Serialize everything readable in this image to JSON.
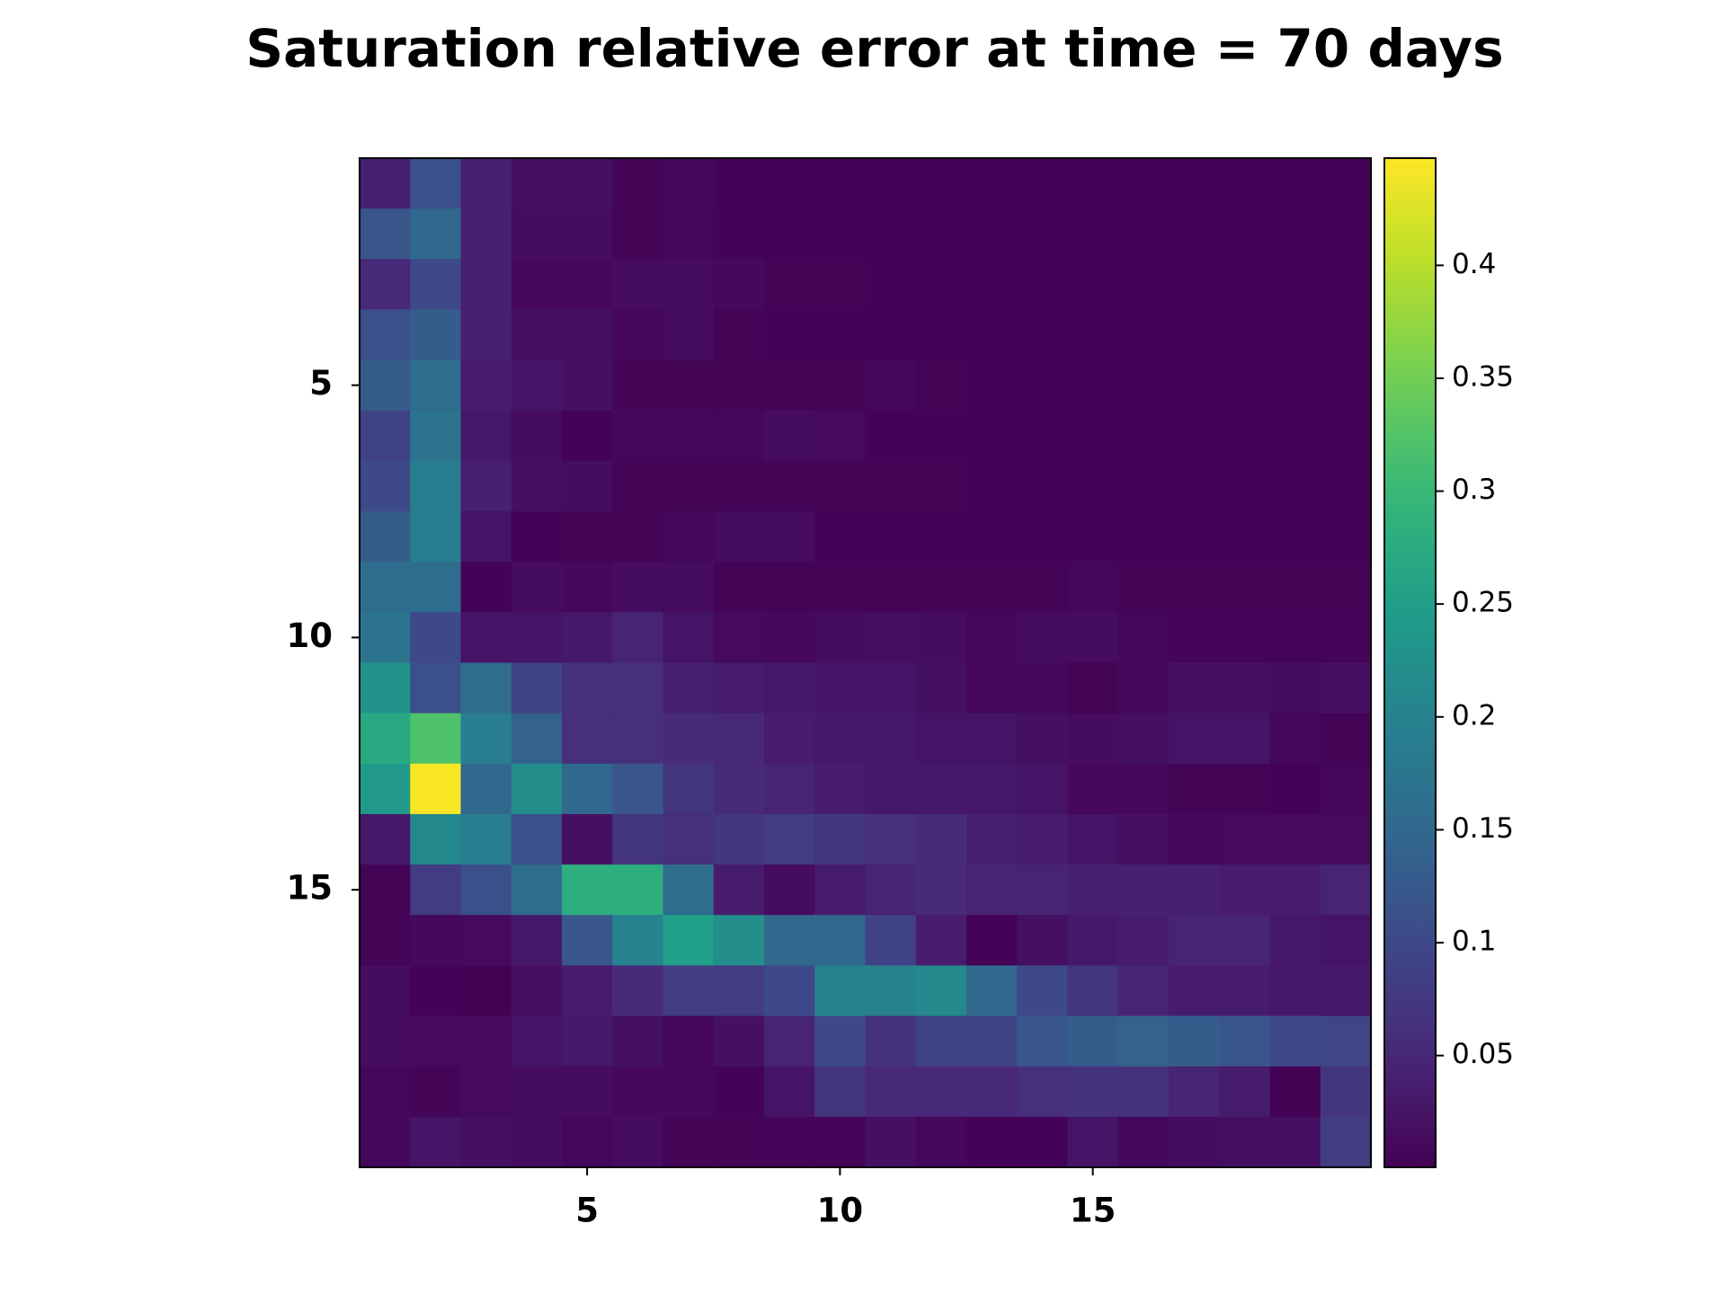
{
  "chart_data": {
    "type": "heatmap",
    "title": "Saturation relative error at time = 70 days",
    "colormap": "viridis",
    "x": [
      1,
      2,
      3,
      4,
      5,
      6,
      7,
      8,
      9,
      10,
      11,
      12,
      13,
      14,
      15,
      16,
      17,
      18,
      19,
      20
    ],
    "y": [
      1,
      2,
      3,
      4,
      5,
      6,
      7,
      8,
      9,
      10,
      11,
      12,
      13,
      14,
      15,
      16,
      17,
      18,
      19,
      20
    ],
    "xlim": [
      0.5,
      20.5
    ],
    "ylim": [
      20.5,
      0.5
    ],
    "xticks": [
      5,
      10,
      15
    ],
    "yticks": [
      5,
      10,
      15
    ],
    "clim": [
      0.0005,
      0.4475
    ],
    "cticks": [
      0.05,
      0.1,
      0.15,
      0.2,
      0.25,
      0.3,
      0.35,
      0.4
    ],
    "z": [
      [
        0.04,
        0.11,
        0.04,
        0.02,
        0.02,
        0.005,
        0.01,
        0.003,
        0.003,
        0.003,
        0.003,
        0.003,
        0.003,
        0.003,
        0.003,
        0.003,
        0.003,
        0.003,
        0.003,
        0.003
      ],
      [
        0.12,
        0.15,
        0.04,
        0.015,
        0.015,
        0.005,
        0.008,
        0.003,
        0.003,
        0.003,
        0.003,
        0.003,
        0.003,
        0.003,
        0.003,
        0.003,
        0.003,
        0.003,
        0.003,
        0.003
      ],
      [
        0.05,
        0.1,
        0.04,
        0.01,
        0.01,
        0.015,
        0.015,
        0.01,
        0.005,
        0.005,
        0.003,
        0.003,
        0.003,
        0.003,
        0.003,
        0.003,
        0.003,
        0.003,
        0.003,
        0.003
      ],
      [
        0.11,
        0.13,
        0.04,
        0.02,
        0.02,
        0.01,
        0.015,
        0.005,
        0.003,
        0.003,
        0.003,
        0.003,
        0.003,
        0.003,
        0.003,
        0.003,
        0.003,
        0.003,
        0.003,
        0.003
      ],
      [
        0.13,
        0.16,
        0.035,
        0.025,
        0.02,
        0.005,
        0.005,
        0.005,
        0.005,
        0.005,
        0.008,
        0.005,
        0.003,
        0.003,
        0.003,
        0.003,
        0.003,
        0.003,
        0.003,
        0.003
      ],
      [
        0.09,
        0.17,
        0.03,
        0.015,
        0.003,
        0.008,
        0.008,
        0.008,
        0.015,
        0.012,
        0.003,
        0.003,
        0.003,
        0.003,
        0.003,
        0.003,
        0.003,
        0.003,
        0.003,
        0.003
      ],
      [
        0.1,
        0.19,
        0.04,
        0.02,
        0.015,
        0.005,
        0.005,
        0.005,
        0.005,
        0.005,
        0.005,
        0.005,
        0.003,
        0.003,
        0.003,
        0.003,
        0.003,
        0.003,
        0.003,
        0.003
      ],
      [
        0.13,
        0.19,
        0.025,
        0.003,
        0.005,
        0.005,
        0.01,
        0.015,
        0.015,
        0.003,
        0.003,
        0.003,
        0.003,
        0.003,
        0.003,
        0.003,
        0.003,
        0.003,
        0.003,
        0.003
      ],
      [
        0.16,
        0.16,
        0.003,
        0.015,
        0.01,
        0.015,
        0.015,
        0.005,
        0.005,
        0.005,
        0.005,
        0.005,
        0.005,
        0.005,
        0.008,
        0.005,
        0.005,
        0.005,
        0.005,
        0.005
      ],
      [
        0.17,
        0.1,
        0.025,
        0.025,
        0.03,
        0.045,
        0.025,
        0.012,
        0.01,
        0.015,
        0.018,
        0.015,
        0.008,
        0.015,
        0.015,
        0.008,
        0.006,
        0.006,
        0.006,
        0.006
      ],
      [
        0.23,
        0.11,
        0.16,
        0.09,
        0.06,
        0.06,
        0.04,
        0.035,
        0.03,
        0.025,
        0.025,
        0.02,
        0.01,
        0.01,
        0.005,
        0.01,
        0.02,
        0.02,
        0.015,
        0.02
      ],
      [
        0.27,
        0.32,
        0.19,
        0.14,
        0.06,
        0.06,
        0.055,
        0.05,
        0.035,
        0.03,
        0.03,
        0.025,
        0.025,
        0.02,
        0.015,
        0.02,
        0.025,
        0.025,
        0.01,
        0.005
      ],
      [
        0.24,
        0.445,
        0.15,
        0.22,
        0.15,
        0.12,
        0.07,
        0.055,
        0.045,
        0.035,
        0.03,
        0.03,
        0.03,
        0.025,
        0.01,
        0.01,
        0.005,
        0.005,
        0.003,
        0.008
      ],
      [
        0.03,
        0.21,
        0.19,
        0.11,
        0.02,
        0.07,
        0.06,
        0.07,
        0.08,
        0.07,
        0.06,
        0.055,
        0.04,
        0.035,
        0.025,
        0.02,
        0.01,
        0.012,
        0.012,
        0.012
      ],
      [
        0.005,
        0.08,
        0.11,
        0.16,
        0.28,
        0.28,
        0.16,
        0.035,
        0.015,
        0.035,
        0.045,
        0.055,
        0.045,
        0.045,
        0.04,
        0.04,
        0.04,
        0.035,
        0.035,
        0.045
      ],
      [
        0.005,
        0.01,
        0.012,
        0.03,
        0.12,
        0.2,
        0.25,
        0.22,
        0.15,
        0.15,
        0.09,
        0.035,
        0.003,
        0.02,
        0.03,
        0.035,
        0.045,
        0.045,
        0.03,
        0.025
      ],
      [
        0.015,
        0.003,
        0.002,
        0.02,
        0.035,
        0.055,
        0.08,
        0.08,
        0.1,
        0.2,
        0.2,
        0.21,
        0.15,
        0.1,
        0.07,
        0.045,
        0.035,
        0.035,
        0.03,
        0.03
      ],
      [
        0.015,
        0.012,
        0.012,
        0.025,
        0.03,
        0.02,
        0.01,
        0.02,
        0.045,
        0.1,
        0.065,
        0.09,
        0.09,
        0.12,
        0.13,
        0.14,
        0.13,
        0.12,
        0.1,
        0.095
      ],
      [
        0.008,
        0.005,
        0.012,
        0.015,
        0.015,
        0.01,
        0.01,
        0.003,
        0.025,
        0.07,
        0.05,
        0.05,
        0.05,
        0.06,
        0.065,
        0.065,
        0.045,
        0.035,
        0.002,
        0.07
      ],
      [
        0.01,
        0.025,
        0.02,
        0.015,
        0.008,
        0.015,
        0.005,
        0.005,
        0.004,
        0.004,
        0.02,
        0.008,
        0.003,
        0.003,
        0.025,
        0.008,
        0.015,
        0.018,
        0.018,
        0.08
      ]
    ]
  }
}
